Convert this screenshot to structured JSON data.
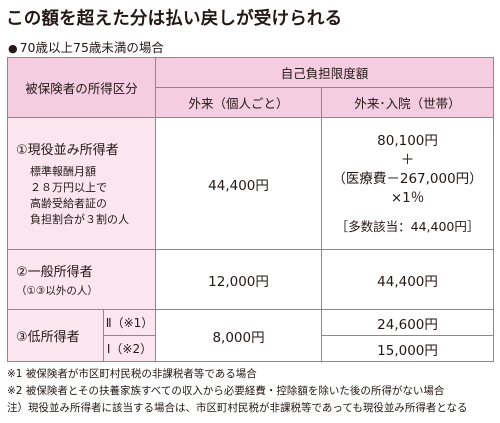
{
  "title": "この額を超えた分は払い戻しが受けられる",
  "subtitle": "70歳以上75歳未満の場合",
  "table": {
    "header": {
      "category": "被保険者の所得区分",
      "limit_group": "自己負担限度額",
      "outpatient": "外来（個人ごと）",
      "inpatient": "外来･入院（世帯）"
    },
    "rows": {
      "active": {
        "title": "①現役並み所得者",
        "desc_lines": [
          "標準報酬月額",
          "２８万円以上で",
          "高齢受給者証の",
          "負担割合が３割の人"
        ],
        "outpatient": "44,400円",
        "inpatient_lines": [
          "80,100円",
          "＋",
          "（医療費－267,000円）",
          "×1％"
        ],
        "inpatient_multi": "［多数該当：44,400円］"
      },
      "general": {
        "title": "②一般所得者",
        "note": "（①③以外の人）",
        "outpatient": "12,000円",
        "inpatient": "44,400円"
      },
      "low": {
        "title": "③低所得者",
        "outpatient": "8,000円",
        "sub": [
          {
            "label": "Ⅱ（※1）",
            "inpatient": "24,600円"
          },
          {
            "label": "Ⅰ（※2）",
            "inpatient": "15,000円"
          }
        ]
      }
    }
  },
  "notes": [
    "※1 被保険者が市区町村民税の非課税者等である場合",
    "※2 被保険者とその扶養家族すべての収入から必要経費・控除額を除いた後の所得がない場合",
    "注）現役並み所得者に該当する場合は、市区町村民税が非課税等であっても現役並み所得者となる"
  ],
  "colors": {
    "header_bg": "#f4cde0",
    "row_header_bg": "#fbe6ef",
    "border": "#8a8a8a",
    "text": "#231815"
  }
}
